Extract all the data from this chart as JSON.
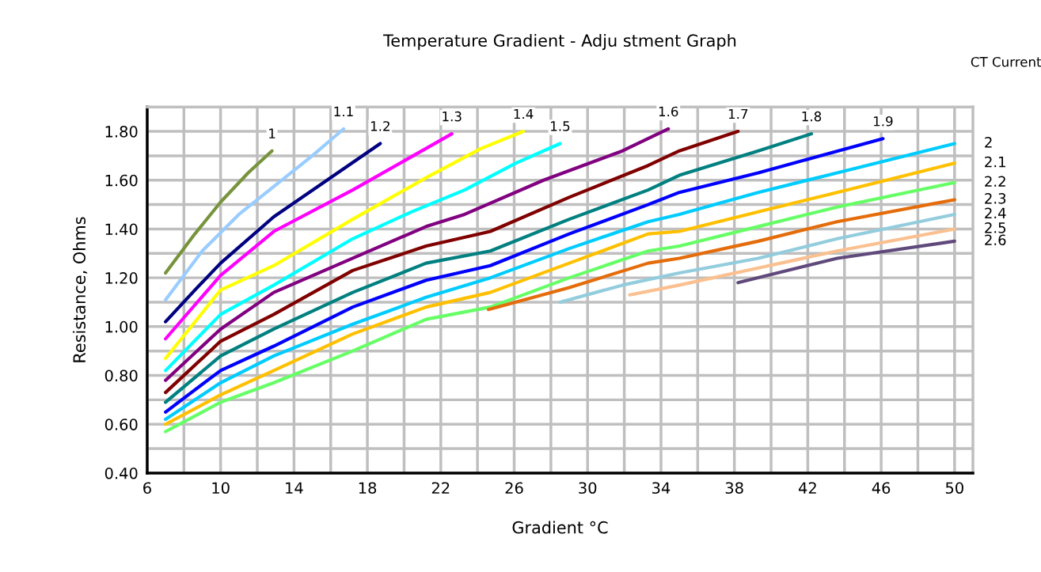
{
  "chart_data": {
    "type": "line",
    "title": "Temperature Gradient - Adju stment Graph",
    "xlabel": "Gradient °C",
    "ylabel": "Resistance, Ohms",
    "legend_title": "CT Current",
    "xlim": [
      6,
      51
    ],
    "ylim": [
      0.4,
      1.9
    ],
    "xticks": [
      6,
      {
        "value": 8,
        "label": null
      },
      10,
      {
        "value": 12,
        "label": null
      },
      14,
      {
        "value": 16,
        "label": null
      },
      18,
      {
        "value": 20,
        "label": null
      },
      22,
      {
        "value": 24,
        "label": null
      },
      26,
      {
        "value": 28,
        "label": null
      },
      30,
      {
        "value": 32,
        "label": null
      },
      34,
      {
        "value": 36,
        "label": null
      },
      38,
      {
        "value": 40,
        "label": null
      },
      42,
      {
        "value": 44,
        "label": null
      },
      46,
      {
        "value": 48,
        "label": null
      },
      50
    ],
    "yticks": [
      {
        "value": 0.4,
        "label": "0.40"
      },
      {
        "value": 0.5,
        "label": null
      },
      {
        "value": 0.6,
        "label": "0.60"
      },
      {
        "value": 0.7,
        "label": null
      },
      {
        "value": 0.8,
        "label": "0.80"
      },
      {
        "value": 0.9,
        "label": null
      },
      {
        "value": 1.0,
        "label": "1.00"
      },
      {
        "value": 1.1,
        "label": null
      },
      {
        "value": 1.2,
        "label": "1.20"
      },
      {
        "value": 1.3,
        "label": null
      },
      {
        "value": 1.4,
        "label": "1.40"
      },
      {
        "value": 1.5,
        "label": null
      },
      {
        "value": 1.6,
        "label": "1.60"
      },
      {
        "value": 1.7,
        "label": null
      },
      {
        "value": 1.8,
        "label": "1.80"
      }
    ],
    "grid": true,
    "marker": "none",
    "line_style": "solid",
    "series": [
      {
        "name": "1",
        "color": "#77933c",
        "x": [
          7,
          8.6,
          10,
          11.5,
          12.8
        ],
        "values": [
          1.22,
          1.38,
          1.51,
          1.63,
          1.72
        ]
      },
      {
        "name": "1.1",
        "color": "#99ccff",
        "x": [
          7,
          9,
          11,
          13,
          15,
          16.7
        ],
        "values": [
          1.11,
          1.31,
          1.46,
          1.58,
          1.7,
          1.81
        ]
      },
      {
        "name": "1.2",
        "color": "#000080",
        "x": [
          7,
          8.6,
          10,
          12.9,
          15.8,
          18.7
        ],
        "values": [
          1.02,
          1.15,
          1.26,
          1.45,
          1.6,
          1.75
        ]
      },
      {
        "name": "1.3",
        "color": "#ff00ff",
        "x": [
          7,
          10,
          12.9,
          17.2,
          21.2,
          22.6
        ],
        "values": [
          0.95,
          1.21,
          1.39,
          1.56,
          1.73,
          1.79
        ]
      },
      {
        "name": "1.4",
        "color": "#ffff00",
        "x": [
          7,
          10,
          12.9,
          17.2,
          21.2,
          24.2,
          26.5
        ],
        "values": [
          0.87,
          1.15,
          1.25,
          1.44,
          1.61,
          1.73,
          1.8
        ]
      },
      {
        "name": "1.5",
        "color": "#00ffff",
        "x": [
          7,
          10,
          12.9,
          17.2,
          20.4,
          23.3,
          26.1,
          28.5
        ],
        "values": [
          0.82,
          1.05,
          1.17,
          1.36,
          1.47,
          1.56,
          1.67,
          1.75
        ]
      },
      {
        "name": "1.6",
        "color": "#800080",
        "x": [
          7,
          10,
          12.9,
          17.2,
          21.2,
          23.3,
          27.6,
          31.9,
          34.4
        ],
        "values": [
          0.78,
          0.99,
          1.14,
          1.28,
          1.41,
          1.46,
          1.6,
          1.72,
          1.81
        ]
      },
      {
        "name": "1.7",
        "color": "#800000",
        "x": [
          7,
          10,
          12.9,
          17.2,
          21.2,
          24.7,
          29,
          33.3,
          35,
          38.2
        ],
        "values": [
          0.73,
          0.94,
          1.05,
          1.23,
          1.33,
          1.39,
          1.53,
          1.66,
          1.72,
          1.8
        ]
      },
      {
        "name": "1.8",
        "color": "#008080",
        "x": [
          7,
          10,
          12.9,
          17.2,
          21.2,
          24.7,
          29,
          33.3,
          35,
          39.3,
          42.2
        ],
        "values": [
          0.69,
          0.88,
          0.99,
          1.14,
          1.26,
          1.31,
          1.44,
          1.56,
          1.62,
          1.72,
          1.79
        ]
      },
      {
        "name": "1.9",
        "color": "#0000ff",
        "x": [
          7,
          10,
          12.9,
          17.2,
          21.2,
          24.7,
          29,
          33.3,
          35,
          39.3,
          42.2,
          46.1
        ],
        "values": [
          0.65,
          0.82,
          0.92,
          1.08,
          1.19,
          1.25,
          1.38,
          1.5,
          1.55,
          1.63,
          1.69,
          1.77
        ]
      },
      {
        "name": "2",
        "color": "#00ccff",
        "x": [
          7,
          10,
          12.9,
          17.2,
          21.2,
          24.7,
          29,
          33.3,
          35,
          39.3,
          43.6,
          50
        ],
        "values": [
          0.62,
          0.77,
          0.88,
          1.01,
          1.12,
          1.2,
          1.32,
          1.43,
          1.46,
          1.55,
          1.63,
          1.75
        ]
      },
      {
        "name": "2.1",
        "color": "#ffc000",
        "x": [
          7,
          10,
          12.9,
          17.2,
          21.2,
          24.7,
          29,
          33.3,
          35,
          39.3,
          43.6,
          50
        ],
        "values": [
          0.6,
          0.72,
          0.82,
          0.97,
          1.08,
          1.14,
          1.26,
          1.38,
          1.39,
          1.47,
          1.55,
          1.67
        ]
      },
      {
        "name": "2.2",
        "color": "#66ff66",
        "x": [
          7,
          10,
          12.9,
          17.2,
          21.2,
          24.7,
          29,
          33.3,
          35,
          39.3,
          43.6,
          50
        ],
        "values": [
          0.57,
          0.69,
          0.77,
          0.9,
          1.03,
          1.08,
          1.2,
          1.31,
          1.33,
          1.41,
          1.49,
          1.59
        ]
      },
      {
        "name": "2.3",
        "color": "#e46c0a",
        "x": [
          24.6,
          29,
          33.3,
          35,
          39.3,
          43.6,
          50
        ],
        "values": [
          1.07,
          1.16,
          1.26,
          1.28,
          1.35,
          1.43,
          1.52
        ]
      },
      {
        "name": "2.4",
        "color": "#93cddd",
        "x": [
          28.5,
          31.9,
          35,
          39.3,
          43.6,
          50
        ],
        "values": [
          1.1,
          1.17,
          1.22,
          1.28,
          1.36,
          1.46
        ]
      },
      {
        "name": "2.5",
        "color": "#fac090",
        "x": [
          32.3,
          35,
          39.3,
          43.6,
          50
        ],
        "values": [
          1.13,
          1.17,
          1.24,
          1.31,
          1.4
        ]
      },
      {
        "name": "2.6",
        "color": "#604a7b",
        "x": [
          38.2,
          43.6,
          50
        ],
        "values": [
          1.18,
          1.28,
          1.35
        ]
      }
    ]
  }
}
